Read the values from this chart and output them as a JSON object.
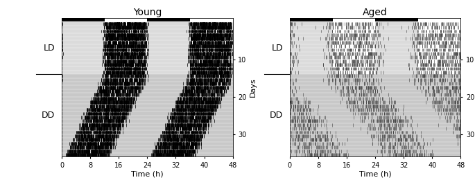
{
  "title_young": "Young",
  "title_aged": "Aged",
  "xlabel": "Time (h)",
  "ylabel_right": "Days",
  "label_LD": "LD",
  "label_DD": "DD",
  "xticks": [
    0,
    8,
    16,
    24,
    32,
    40,
    48
  ],
  "ytick_labels": [
    10,
    20,
    30
  ],
  "total_days": 36,
  "LD_days": 14,
  "young_period": 23.5,
  "aged_period": 24.8,
  "bar_black": "#000000",
  "bar_white": "#ffffff",
  "bg_LD_light": "#ffffff",
  "bg_LD_dark": "#b0b0b0",
  "bg_DD": "#c8c8c8",
  "activity_color_young": "#000000",
  "activity_color_aged": "#404040",
  "fontsize_title": 10,
  "fontsize_label": 8,
  "fontsize_tick": 7
}
